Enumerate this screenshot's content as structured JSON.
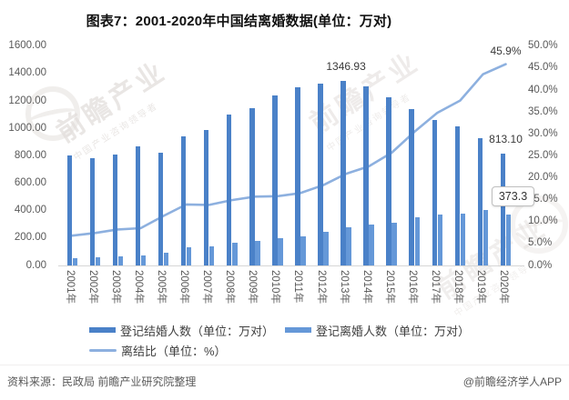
{
  "title": "图表7：2001-2020年中国结离婚数据(单位：万对)",
  "chart_data": {
    "type": "bar",
    "subtype": "dual-axis bar + line",
    "categories": [
      "2001年",
      "2002年",
      "2003年",
      "2004年",
      "2005年",
      "2006年",
      "2007年",
      "2008年",
      "2009年",
      "2010年",
      "2011年",
      "2012年",
      "2013年",
      "2014年",
      "2015年",
      "2016年",
      "2017年",
      "2018年",
      "2019年",
      "2020年"
    ],
    "series": [
      {
        "name": "登记结婚人数（单位：万对）",
        "type": "bar",
        "axis": "left",
        "color": "#4A81C8",
        "values": [
          805.0,
          786.0,
          811.4,
          867.2,
          823.1,
          945.0,
          991.4,
          1098.3,
          1145.8,
          1241.0,
          1302.4,
          1323.6,
          1346.93,
          1306.7,
          1224.7,
          1142.8,
          1063.1,
          1013.9,
          927.3,
          813.1
        ]
      },
      {
        "name": "登记离婚人数（单位：万对）",
        "type": "bar",
        "axis": "left",
        "color": "#6598D8",
        "values": [
          54.8,
          58.5,
          66.9,
          73.4,
          93.0,
          131.3,
          137.0,
          164.1,
          180.2,
          196.1,
          215.5,
          242.3,
          281.5,
          295.7,
          314.9,
          348.6,
          370.4,
          381.2,
          404.7,
          373.3
        ]
      },
      {
        "name": "离结比（单位：%）",
        "type": "line",
        "axis": "right",
        "color": "#8DB0DF",
        "values": [
          6.8,
          7.4,
          8.2,
          8.5,
          11.3,
          13.9,
          13.8,
          14.9,
          15.7,
          15.8,
          16.5,
          18.3,
          20.9,
          22.6,
          25.7,
          30.5,
          34.8,
          37.6,
          43.6,
          45.9
        ]
      }
    ],
    "left_axis": {
      "min": 0,
      "max": 1600,
      "step": 200,
      "tick_labels": [
        "0.00",
        "200.00",
        "400.00",
        "600.00",
        "800.00",
        "1000.00",
        "1200.00",
        "1400.00",
        "1600.00"
      ]
    },
    "right_axis": {
      "min": 0,
      "max": 50,
      "step": 5,
      "tick_labels": [
        "0.0%",
        "5.0%",
        "10.0%",
        "15.0%",
        "20.0%",
        "25.0%",
        "30.0%",
        "35.0%",
        "40.0%",
        "45.0%",
        "50.0%"
      ]
    },
    "grid": false,
    "legend_position": "bottom",
    "data_labels": [
      {
        "series": 0,
        "category": "2013年",
        "text": "1346.93"
      },
      {
        "series": 0,
        "category": "2020年",
        "text": "813.10"
      },
      {
        "series": 2,
        "category": "2020年",
        "text": "45.9%"
      }
    ],
    "tooltip": {
      "series": 1,
      "category": "2020年",
      "text": "373.3"
    }
  },
  "footer": {
    "source": "资料来源：民政局 前瞻产业研究院整理",
    "credit": "@前瞻经济学人APP"
  },
  "watermark": {
    "big_text": "前瞻产业",
    "small_text": "中国产业咨询领导者"
  }
}
